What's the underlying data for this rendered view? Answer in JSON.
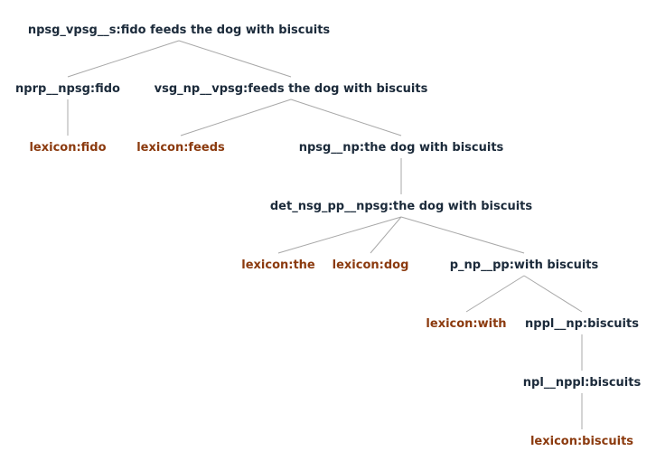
{
  "colors": {
    "rule": "#1b2a3a",
    "lexicon": "#8b3a0e",
    "edge": "#a8a8a8"
  },
  "tree": {
    "nodes": [
      {
        "id": "s",
        "label": "npsg_vpsg__s:fido feeds the dog with biscuits",
        "kind": "rule"
      },
      {
        "id": "np1",
        "label": "nprp__npsg:fido",
        "kind": "rule"
      },
      {
        "id": "vp",
        "label": "vsg_np__vpsg:feeds the dog with biscuits",
        "kind": "rule"
      },
      {
        "id": "lex-fido",
        "label": "lexicon:fido",
        "kind": "lexicon"
      },
      {
        "id": "lex-feeds",
        "label": "lexicon:feeds",
        "kind": "lexicon"
      },
      {
        "id": "np2",
        "label": "npsg__np:the dog with biscuits",
        "kind": "rule"
      },
      {
        "id": "det",
        "label": "det_nsg_pp__npsg:the dog with biscuits",
        "kind": "rule"
      },
      {
        "id": "lex-the",
        "label": "lexicon:the",
        "kind": "lexicon"
      },
      {
        "id": "lex-dog",
        "label": "lexicon:dog",
        "kind": "lexicon"
      },
      {
        "id": "pp",
        "label": "p_np__pp:with biscuits",
        "kind": "rule"
      },
      {
        "id": "lex-with",
        "label": "lexicon:with",
        "kind": "lexicon"
      },
      {
        "id": "nppl-np",
        "label": "nppl__np:biscuits",
        "kind": "rule"
      },
      {
        "id": "npl-nppl",
        "label": "npl__nppl:biscuits",
        "kind": "rule"
      },
      {
        "id": "lex-biscuits",
        "label": "lexicon:biscuits",
        "kind": "lexicon"
      }
    ],
    "edges": [
      [
        "s",
        "np1"
      ],
      [
        "s",
        "vp"
      ],
      [
        "np1",
        "lex-fido"
      ],
      [
        "vp",
        "lex-feeds"
      ],
      [
        "vp",
        "np2"
      ],
      [
        "np2",
        "det"
      ],
      [
        "det",
        "lex-the"
      ],
      [
        "det",
        "lex-dog"
      ],
      [
        "det",
        "pp"
      ],
      [
        "pp",
        "lex-with"
      ],
      [
        "pp",
        "nppl-np"
      ],
      [
        "nppl-np",
        "npl-nppl"
      ],
      [
        "npl-nppl",
        "lex-biscuits"
      ]
    ]
  }
}
